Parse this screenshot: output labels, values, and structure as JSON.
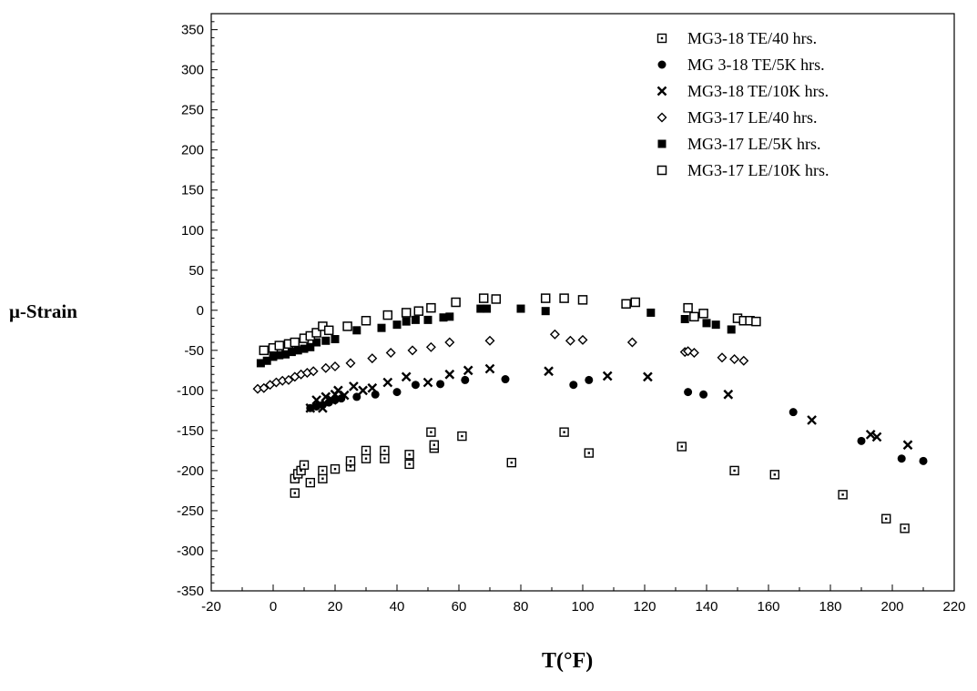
{
  "chart_data": {
    "type": "scatter",
    "title": "",
    "xlabel": "T(°F)",
    "ylabel": "μ-Strain",
    "xlim": [
      -20,
      220
    ],
    "ylim": [
      -350,
      370
    ],
    "xticks": [
      -20,
      0,
      20,
      40,
      60,
      80,
      100,
      120,
      140,
      160,
      180,
      200,
      220
    ],
    "yticks": [
      350,
      300,
      250,
      200,
      150,
      100,
      50,
      0,
      -50,
      -100,
      -150,
      -200,
      -250,
      -300,
      -350
    ],
    "grid": false,
    "legend_position": "top-right",
    "series": [
      {
        "name": "MG3-18 TE/40 hrs.",
        "marker": "square-dot",
        "points": [
          [
            7,
            -228
          ],
          [
            7,
            -210
          ],
          [
            8,
            -204
          ],
          [
            9,
            -200
          ],
          [
            10,
            -193
          ],
          [
            12,
            -215
          ],
          [
            16,
            -210
          ],
          [
            16,
            -200
          ],
          [
            20,
            -198
          ],
          [
            25,
            -195
          ],
          [
            25,
            -188
          ],
          [
            30,
            -185
          ],
          [
            30,
            -175
          ],
          [
            36,
            -185
          ],
          [
            36,
            -175
          ],
          [
            44,
            -192
          ],
          [
            44,
            -180
          ],
          [
            51,
            -152
          ],
          [
            52,
            -172
          ],
          [
            52,
            -168
          ],
          [
            61,
            -157
          ],
          [
            77,
            -190
          ],
          [
            94,
            -152
          ],
          [
            102,
            -178
          ],
          [
            132,
            -170
          ],
          [
            149,
            -200
          ],
          [
            162,
            -205
          ],
          [
            184,
            -230
          ],
          [
            198,
            -260
          ],
          [
            204,
            -272
          ]
        ]
      },
      {
        "name": "MG 3-18 TE/5K hrs.",
        "marker": "filled-circle",
        "points": [
          [
            12,
            -122
          ],
          [
            14,
            -120
          ],
          [
            16,
            -118
          ],
          [
            18,
            -115
          ],
          [
            20,
            -112
          ],
          [
            22,
            -110
          ],
          [
            27,
            -108
          ],
          [
            33,
            -105
          ],
          [
            40,
            -102
          ],
          [
            46,
            -93
          ],
          [
            54,
            -92
          ],
          [
            62,
            -87
          ],
          [
            75,
            -86
          ],
          [
            97,
            -93
          ],
          [
            102,
            -87
          ],
          [
            134,
            -102
          ],
          [
            139,
            -105
          ],
          [
            168,
            -127
          ],
          [
            190,
            -163
          ],
          [
            203,
            -185
          ],
          [
            210,
            -188
          ]
        ]
      },
      {
        "name": "MG3-18 TE/10K hrs.",
        "marker": "cross",
        "points": [
          [
            12,
            -122
          ],
          [
            14,
            -112
          ],
          [
            15,
            -118
          ],
          [
            16,
            -122
          ],
          [
            17,
            -108
          ],
          [
            19,
            -112
          ],
          [
            20,
            -105
          ],
          [
            21,
            -100
          ],
          [
            23,
            -106
          ],
          [
            26,
            -95
          ],
          [
            29,
            -100
          ],
          [
            32,
            -97
          ],
          [
            37,
            -90
          ],
          [
            43,
            -83
          ],
          [
            50,
            -90
          ],
          [
            57,
            -80
          ],
          [
            63,
            -75
          ],
          [
            70,
            -73
          ],
          [
            89,
            -76
          ],
          [
            108,
            -82
          ],
          [
            121,
            -83
          ],
          [
            147,
            -105
          ],
          [
            174,
            -137
          ],
          [
            193,
            -155
          ],
          [
            195,
            -158
          ],
          [
            205,
            -168
          ]
        ]
      },
      {
        "name": "MG3-17 LE/40 hrs.",
        "marker": "open-diamond",
        "points": [
          [
            -5,
            -98
          ],
          [
            -3,
            -97
          ],
          [
            -1,
            -93
          ],
          [
            1,
            -90
          ],
          [
            3,
            -88
          ],
          [
            5,
            -87
          ],
          [
            7,
            -83
          ],
          [
            9,
            -80
          ],
          [
            11,
            -78
          ],
          [
            13,
            -76
          ],
          [
            17,
            -72
          ],
          [
            20,
            -70
          ],
          [
            25,
            -66
          ],
          [
            32,
            -60
          ],
          [
            38,
            -53
          ],
          [
            45,
            -50
          ],
          [
            51,
            -46
          ],
          [
            57,
            -40
          ],
          [
            70,
            -38
          ],
          [
            91,
            -30
          ],
          [
            96,
            -38
          ],
          [
            100,
            -37
          ],
          [
            116,
            -40
          ],
          [
            133,
            -52
          ],
          [
            134,
            -51
          ],
          [
            136,
            -53
          ],
          [
            145,
            -59
          ],
          [
            149,
            -61
          ],
          [
            152,
            -63
          ]
        ]
      },
      {
        "name": "MG3-17 LE/5K hrs.",
        "marker": "filled-square",
        "points": [
          [
            -4,
            -66
          ],
          [
            -2,
            -63
          ],
          [
            0,
            -58
          ],
          [
            2,
            -56
          ],
          [
            4,
            -55
          ],
          [
            6,
            -52
          ],
          [
            8,
            -50
          ],
          [
            10,
            -48
          ],
          [
            12,
            -46
          ],
          [
            14,
            -40
          ],
          [
            17,
            -38
          ],
          [
            20,
            -36
          ],
          [
            27,
            -25
          ],
          [
            35,
            -22
          ],
          [
            40,
            -18
          ],
          [
            43,
            -14
          ],
          [
            46,
            -12
          ],
          [
            50,
            -12
          ],
          [
            55,
            -9
          ],
          [
            57,
            -8
          ],
          [
            67,
            2
          ],
          [
            69,
            2
          ],
          [
            80,
            2
          ],
          [
            88,
            -1
          ],
          [
            122,
            -3
          ],
          [
            133,
            -11
          ],
          [
            140,
            -16
          ],
          [
            143,
            -18
          ],
          [
            148,
            -24
          ]
        ]
      },
      {
        "name": "MG3-17 LE/10K hrs.",
        "marker": "open-square",
        "points": [
          [
            -3,
            -50
          ],
          [
            0,
            -47
          ],
          [
            2,
            -44
          ],
          [
            5,
            -42
          ],
          [
            7,
            -40
          ],
          [
            10,
            -35
          ],
          [
            12,
            -32
          ],
          [
            14,
            -28
          ],
          [
            16,
            -20
          ],
          [
            18,
            -25
          ],
          [
            24,
            -20
          ],
          [
            30,
            -13
          ],
          [
            37,
            -6
          ],
          [
            43,
            -3
          ],
          [
            47,
            -1
          ],
          [
            51,
            3
          ],
          [
            59,
            10
          ],
          [
            68,
            15
          ],
          [
            72,
            14
          ],
          [
            88,
            15
          ],
          [
            94,
            15
          ],
          [
            100,
            13
          ],
          [
            114,
            8
          ],
          [
            117,
            10
          ],
          [
            134,
            3
          ],
          [
            136,
            -8
          ],
          [
            139,
            -4
          ],
          [
            150,
            -10
          ],
          [
            152,
            -13
          ],
          [
            154,
            -13
          ],
          [
            156,
            -14
          ]
        ]
      }
    ]
  }
}
